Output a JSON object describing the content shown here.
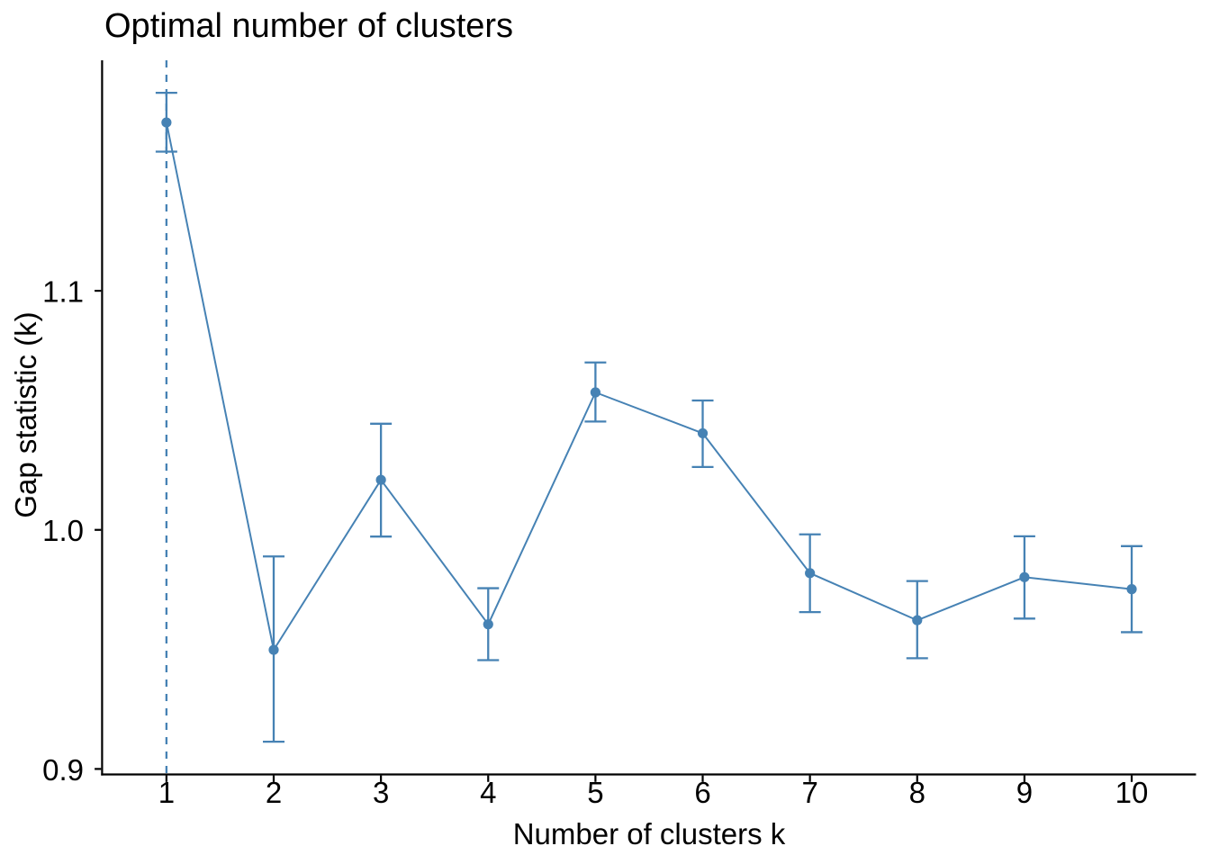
{
  "figure": {
    "title": "Optimal number of clusters",
    "xlabel": "Number of clusters k",
    "ylabel": "Gap statistic (k)",
    "background_color": "#ffffff",
    "text_color": "#000000",
    "axis_color": "#000000",
    "series_color": "#4682B4",
    "optimal_k_line": "dashed"
  },
  "chart_data": {
    "type": "line",
    "title": "Optimal number of clusters",
    "xlabel": "Number of clusters k",
    "ylabel": "Gap statistic (k)",
    "x": [
      1,
      2,
      3,
      4,
      5,
      6,
      7,
      8,
      9,
      10
    ],
    "series": [
      {
        "name": "Gap statistic",
        "values": [
          1.1704,
          0.9498,
          1.0209,
          0.9605,
          1.0575,
          1.0404,
          0.9819,
          0.9622,
          0.9802,
          0.9752
        ],
        "error_ymin": [
          1.1582,
          0.9114,
          0.9972,
          0.9455,
          1.0453,
          1.0263,
          0.9656,
          0.9463,
          0.9629,
          0.9572
        ],
        "error_ymax": [
          1.1828,
          0.9889,
          1.0444,
          0.9756,
          1.07,
          1.0541,
          0.9981,
          0.9786,
          0.9973,
          0.9932
        ],
        "color": "#4682B4"
      }
    ],
    "vline": {
      "x": 1,
      "style": "dashed",
      "color": "#4682B4"
    },
    "x_tick_labels": [
      "1",
      "2",
      "3",
      "4",
      "5",
      "6",
      "7",
      "8",
      "9",
      "10"
    ],
    "y_ticks": [
      0.9,
      1.0,
      1.1
    ],
    "y_tick_labels": [
      "0.9",
      "1.0",
      "1.1"
    ],
    "xlim": [
      0.4,
      10.6
    ],
    "ylim": [
      0.8977,
      1.1964
    ],
    "grid": false,
    "legend": "none",
    "marker": "circle",
    "errorbars": true
  }
}
